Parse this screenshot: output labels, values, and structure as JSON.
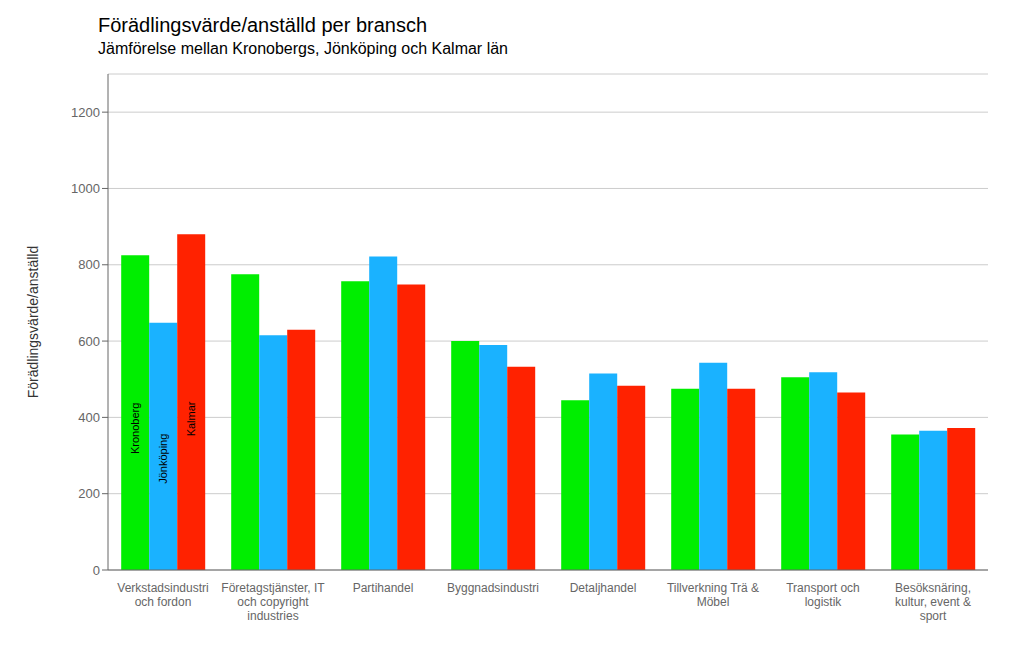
{
  "chart_data": {
    "type": "bar",
    "title": "Förädlingsvärde/anställd per bransch",
    "subtitle": "Jämförelse mellan Kronobergs, Jönköping och Kalmar län",
    "y_label": "Förädlingsvärde/anställd",
    "categories": [
      "Verkstadsindustri\noch fordon",
      "Företagstjänster, IT\noch copyright\nindustries",
      "Partihandel",
      "Byggnadsindustri",
      "Detaljhandel",
      "Tillverkning Trä &\nMöbel",
      "Transport och\nlogistik",
      "Besöksnäring,\nkultur, event &\nsport"
    ],
    "series": [
      {
        "name": "Kronoberg",
        "color": "#00ee00",
        "values": [
          825,
          775,
          757,
          600,
          445,
          475,
          505,
          355
        ]
      },
      {
        "name": "Jönköping",
        "color": "#1ab2ff",
        "values": [
          648,
          615,
          822,
          590,
          515,
          543,
          518,
          365
        ]
      },
      {
        "name": "Kalmar",
        "color": "#ff2200",
        "values": [
          880,
          630,
          748,
          533,
          483,
          475,
          465,
          372
        ]
      }
    ],
    "ylim": [
      0,
      1300
    ],
    "yticks": [
      0,
      200,
      400,
      600,
      800,
      1000,
      1200
    ],
    "grid": true
  }
}
